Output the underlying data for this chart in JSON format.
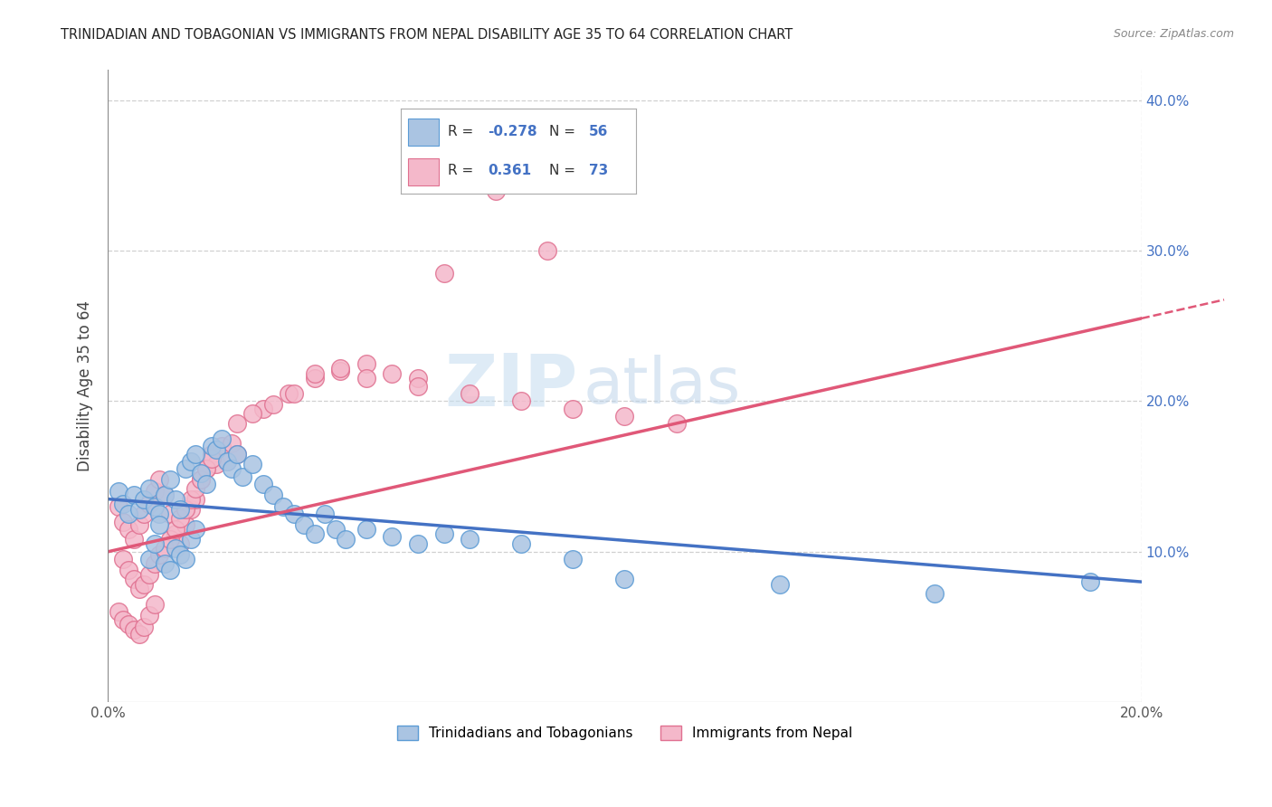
{
  "title": "TRINIDADIAN AND TOBAGONIAN VS IMMIGRANTS FROM NEPAL DISABILITY AGE 35 TO 64 CORRELATION CHART",
  "source": "Source: ZipAtlas.com",
  "ylabel": "Disability Age 35 to 64",
  "x_min": 0.0,
  "x_max": 0.2,
  "y_min": 0.0,
  "y_max": 0.42,
  "x_ticks": [
    0.0,
    0.05,
    0.1,
    0.15,
    0.2
  ],
  "x_tick_labels": [
    "0.0%",
    "",
    "",
    "",
    "20.0%"
  ],
  "y_ticks": [
    0.0,
    0.1,
    0.2,
    0.3,
    0.4
  ],
  "y_tick_labels": [
    "",
    "10.0%",
    "20.0%",
    "30.0%",
    "40.0%"
  ],
  "series1_color": "#aac4e2",
  "series1_edge": "#5b9bd5",
  "series1_label": "Trinidadians and Tobagonians",
  "series1_R": -0.278,
  "series1_N": 56,
  "series1_line_color": "#4472c4",
  "series2_color": "#f4b8ca",
  "series2_edge": "#e07090",
  "series2_label": "Immigrants from Nepal",
  "series2_R": 0.361,
  "series2_N": 73,
  "series2_line_color": "#e05878",
  "watermark_zip": "ZIP",
  "watermark_atlas": "atlas",
  "grid_color": "#d0d0d0",
  "background": "#ffffff",
  "blue_scatter_x": [
    0.002,
    0.003,
    0.004,
    0.005,
    0.006,
    0.007,
    0.008,
    0.009,
    0.01,
    0.011,
    0.012,
    0.013,
    0.014,
    0.015,
    0.016,
    0.017,
    0.018,
    0.019,
    0.02,
    0.021,
    0.022,
    0.023,
    0.024,
    0.025,
    0.026,
    0.028,
    0.03,
    0.032,
    0.034,
    0.036,
    0.038,
    0.04,
    0.042,
    0.044,
    0.046,
    0.05,
    0.055,
    0.06,
    0.065,
    0.07,
    0.008,
    0.009,
    0.01,
    0.011,
    0.012,
    0.013,
    0.014,
    0.015,
    0.016,
    0.017,
    0.08,
    0.09,
    0.1,
    0.13,
    0.16,
    0.19
  ],
  "blue_scatter_y": [
    0.14,
    0.132,
    0.125,
    0.138,
    0.128,
    0.135,
    0.142,
    0.13,
    0.125,
    0.138,
    0.148,
    0.135,
    0.128,
    0.155,
    0.16,
    0.165,
    0.152,
    0.145,
    0.17,
    0.168,
    0.175,
    0.16,
    0.155,
    0.165,
    0.15,
    0.158,
    0.145,
    0.138,
    0.13,
    0.125,
    0.118,
    0.112,
    0.125,
    0.115,
    0.108,
    0.115,
    0.11,
    0.105,
    0.112,
    0.108,
    0.095,
    0.105,
    0.118,
    0.092,
    0.088,
    0.102,
    0.098,
    0.095,
    0.108,
    0.115,
    0.105,
    0.095,
    0.082,
    0.078,
    0.072,
    0.08
  ],
  "pink_scatter_x": [
    0.002,
    0.003,
    0.004,
    0.005,
    0.006,
    0.007,
    0.008,
    0.009,
    0.01,
    0.011,
    0.012,
    0.013,
    0.014,
    0.015,
    0.016,
    0.017,
    0.018,
    0.019,
    0.02,
    0.021,
    0.022,
    0.023,
    0.024,
    0.025,
    0.003,
    0.004,
    0.005,
    0.006,
    0.007,
    0.008,
    0.009,
    0.01,
    0.011,
    0.012,
    0.013,
    0.014,
    0.015,
    0.016,
    0.017,
    0.018,
    0.019,
    0.02,
    0.025,
    0.03,
    0.035,
    0.04,
    0.045,
    0.05,
    0.055,
    0.06,
    0.002,
    0.003,
    0.004,
    0.005,
    0.006,
    0.007,
    0.008,
    0.009,
    0.028,
    0.032,
    0.036,
    0.04,
    0.045,
    0.05,
    0.06,
    0.07,
    0.08,
    0.09,
    0.1,
    0.11,
    0.065,
    0.075,
    0.085
  ],
  "pink_scatter_y": [
    0.13,
    0.12,
    0.115,
    0.108,
    0.118,
    0.125,
    0.132,
    0.14,
    0.148,
    0.138,
    0.125,
    0.112,
    0.105,
    0.118,
    0.128,
    0.135,
    0.148,
    0.155,
    0.165,
    0.158,
    0.17,
    0.16,
    0.172,
    0.165,
    0.095,
    0.088,
    0.082,
    0.075,
    0.078,
    0.085,
    0.092,
    0.098,
    0.102,
    0.108,
    0.115,
    0.122,
    0.128,
    0.135,
    0.142,
    0.148,
    0.155,
    0.162,
    0.185,
    0.195,
    0.205,
    0.215,
    0.22,
    0.225,
    0.218,
    0.215,
    0.06,
    0.055,
    0.052,
    0.048,
    0.045,
    0.05,
    0.058,
    0.065,
    0.192,
    0.198,
    0.205,
    0.218,
    0.222,
    0.215,
    0.21,
    0.205,
    0.2,
    0.195,
    0.19,
    0.185,
    0.285,
    0.34,
    0.3
  ]
}
